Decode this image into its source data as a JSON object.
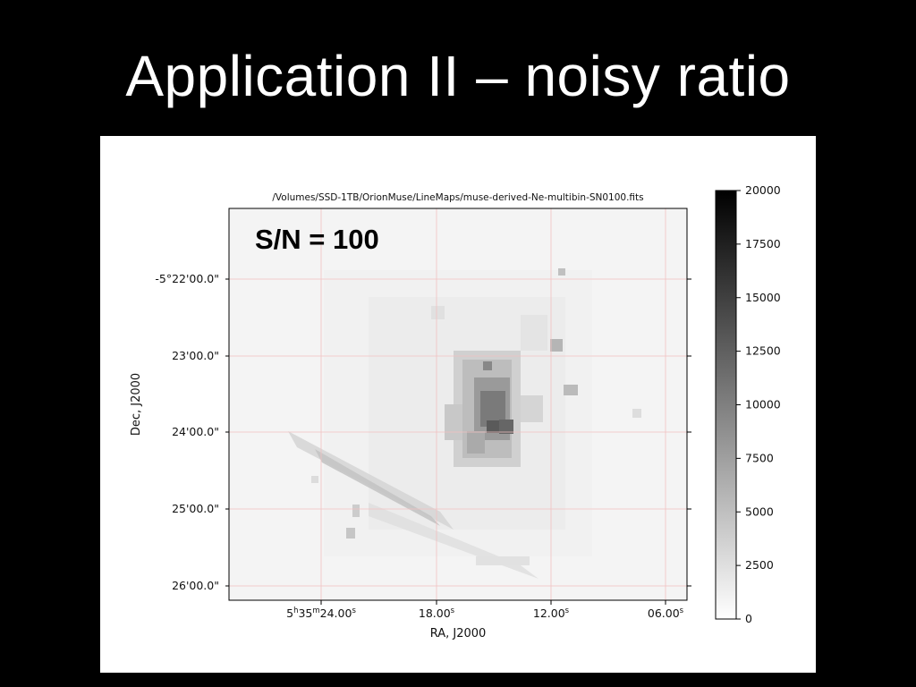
{
  "slide": {
    "title": "Application II – noisy ratio"
  },
  "chart_data": {
    "type": "heatmap",
    "title": "/Volumes/SSD-1TB/OrionMuse/LineMaps/muse-derived-Ne-multibin-SN0100.fits",
    "annotation": "S/N = 100",
    "xlabel": "RA, J2000",
    "ylabel": "Dec, J2000",
    "colormap": "gray_r",
    "grid": true,
    "x_ticks": [
      {
        "h": "5",
        "m": "35",
        "s": "24.00",
        "sup": "s"
      },
      {
        "h": "",
        "m": "",
        "s": "18.00",
        "sup": "s"
      },
      {
        "h": "",
        "m": "",
        "s": "12.00",
        "sup": "s"
      },
      {
        "h": "",
        "m": "",
        "s": "06.00",
        "sup": "s"
      }
    ],
    "y_ticks": [
      "-5°22'00.0\"",
      "23'00.0\"",
      "24'00.0\"",
      "25'00.0\"",
      "26'00.0\""
    ],
    "colorbar": {
      "range": [
        0,
        20000
      ],
      "ticks": [
        "0",
        "2500",
        "5000",
        "7500",
        "10000",
        "12500",
        "15000",
        "17500",
        "20000"
      ]
    }
  }
}
